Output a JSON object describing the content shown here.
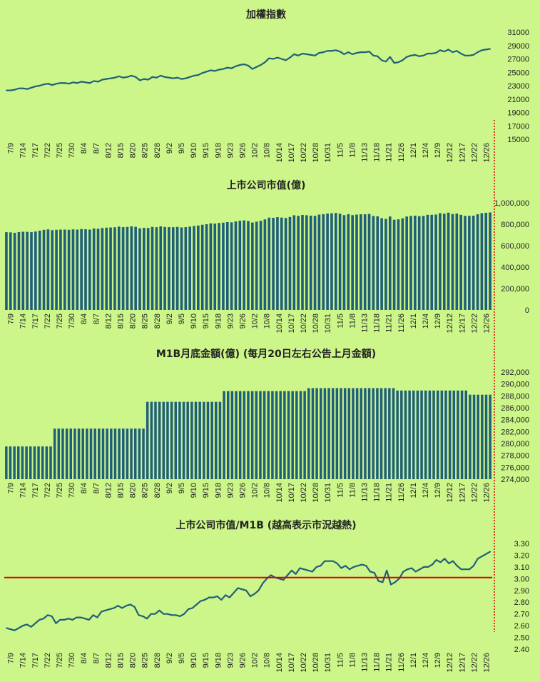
{
  "colors": {
    "background": "#ccf58a",
    "series": "#1f5f7a",
    "reference_line": "#e00000",
    "separator": "#e00000"
  },
  "x_labels": [
    "7/9",
    "7/14",
    "7/17",
    "7/22",
    "7/25",
    "7/30",
    "8/4",
    "8/7",
    "8/12",
    "8/15",
    "8/20",
    "8/25",
    "8/28",
    "9/2",
    "9/5",
    "9/10",
    "9/15",
    "9/18",
    "9/23",
    "9/26",
    "10/2",
    "10/8",
    "10/14",
    "10/17",
    "10/22",
    "10/28",
    "10/31",
    "11/5",
    "11/8",
    "11/13",
    "11/18",
    "11/21",
    "11/26",
    "12/1",
    "12/4",
    "12/9",
    "12/12",
    "12/17",
    "12/22",
    "12/26"
  ],
  "chart_data": [
    {
      "id": "taiex",
      "type": "line",
      "title": "加權指數",
      "ylim": [
        15000,
        31000
      ],
      "yticks": [
        "31000",
        "29000",
        "27000",
        "25000",
        "23000",
        "21000",
        "19000",
        "17000",
        "15000"
      ],
      "x_labels_ref": "x_labels",
      "values": [
        22300,
        22300,
        22400,
        22600,
        22600,
        22500,
        22700,
        22900,
        23000,
        23200,
        23300,
        23100,
        23300,
        23400,
        23400,
        23300,
        23500,
        23400,
        23600,
        23500,
        23400,
        23700,
        23600,
        23900,
        24000,
        24100,
        24200,
        24400,
        24200,
        24300,
        24500,
        24300,
        23800,
        24000,
        23900,
        24300,
        24200,
        24500,
        24300,
        24200,
        24100,
        24200,
        24000,
        24100,
        24300,
        24500,
        24600,
        24900,
        25100,
        25300,
        25200,
        25400,
        25500,
        25700,
        25600,
        25900,
        26100,
        26200,
        26000,
        25500,
        25800,
        26100,
        26500,
        27100,
        27000,
        27200,
        27000,
        26800,
        27200,
        27700,
        27500,
        27800,
        27700,
        27600,
        27500,
        27900,
        28000,
        28200,
        28200,
        28300,
        28100,
        27700,
        28000,
        27700,
        27900,
        28000,
        28000,
        28100,
        27500,
        27400,
        26800,
        26600,
        27300,
        26400,
        26500,
        26800,
        27300,
        27500,
        27600,
        27400,
        27500,
        27800,
        27800,
        27900,
        28300,
        28100,
        28400,
        28000,
        28200,
        27800,
        27500,
        27500,
        27600,
        28000,
        28300,
        28400,
        28500
      ]
    },
    {
      "id": "market_cap",
      "type": "bar",
      "title": "上市公司市值(億)",
      "ylim": [
        0,
        1000000
      ],
      "yticks": [
        "1,000,000",
        "800,000",
        "600,000",
        "400,000",
        "200,000",
        "0"
      ],
      "x_labels_ref": "x_labels",
      "values": [
        726000,
        724000,
        720000,
        727000,
        730000,
        729000,
        726000,
        732000,
        740000,
        748000,
        752000,
        745000,
        748000,
        750000,
        750000,
        748000,
        752000,
        750000,
        755000,
        753000,
        750000,
        760000,
        758000,
        765000,
        768000,
        770000,
        772000,
        778000,
        773000,
        775000,
        780000,
        776000,
        762000,
        766000,
        765000,
        775000,
        772000,
        780000,
        775000,
        773000,
        772000,
        775000,
        770000,
        773000,
        778000,
        784000,
        788000,
        795000,
        800000,
        808000,
        806000,
        812000,
        815000,
        820000,
        818000,
        826000,
        833000,
        836000,
        830000,
        816000,
        824000,
        832000,
        845000,
        862000,
        860000,
        866000,
        862000,
        858000,
        868000,
        884000,
        878000,
        887000,
        884000,
        880000,
        878000,
        890000,
        894000,
        900000,
        902000,
        905000,
        898000,
        885000,
        894000,
        885000,
        890000,
        893000,
        893000,
        896000,
        877000,
        874000,
        856000,
        850000,
        872000,
        842000,
        846000,
        855000,
        872000,
        877000,
        880000,
        875000,
        877000,
        888000,
        888000,
        890000,
        903000,
        898000,
        908000,
        895000,
        900000,
        888000,
        878000,
        878000,
        880000,
        893000,
        903000,
        907000,
        910000
      ]
    },
    {
      "id": "m1b",
      "type": "bar",
      "title": "M1B月底金額(億) (每月20日左右公告上月金額)",
      "ylim": [
        274000,
        292000
      ],
      "yticks": [
        "292,000",
        "290,000",
        "288,000",
        "286,000",
        "284,000",
        "282,000",
        "280,000",
        "278,000",
        "276,000",
        "274,000"
      ],
      "x_labels_ref": "x_labels",
      "values": [
        279500,
        279500,
        279500,
        279500,
        279500,
        279500,
        279500,
        279500,
        279500,
        279500,
        279500,
        279500,
        282500,
        282500,
        282500,
        282500,
        282500,
        282500,
        282500,
        282500,
        282500,
        282500,
        282500,
        282500,
        282500,
        282500,
        282500,
        282500,
        282500,
        282500,
        282500,
        282500,
        282500,
        282500,
        282500,
        287000,
        287000,
        287000,
        287000,
        287000,
        287000,
        287000,
        287000,
        287000,
        287000,
        287000,
        287000,
        287000,
        287000,
        287000,
        287000,
        287000,
        287000,
        287000,
        288800,
        288800,
        288800,
        288800,
        288800,
        288800,
        288800,
        288800,
        288800,
        288800,
        288800,
        288800,
        288800,
        288800,
        288800,
        288800,
        288800,
        288800,
        288800,
        288800,
        288800,
        289300,
        289300,
        289300,
        289300,
        289300,
        289300,
        289300,
        289300,
        289300,
        289300,
        289300,
        289300,
        289300,
        289300,
        289300,
        289300,
        289300,
        289300,
        289300,
        289300,
        289300,
        289300,
        288900,
        288900,
        288900,
        288900,
        288900,
        288900,
        288900,
        288900,
        288900,
        288900,
        288900,
        288900,
        288900,
        288900,
        288900,
        288900,
        288900,
        288900,
        288200,
        288200,
        288200,
        288200,
        288200,
        288200
      ]
    },
    {
      "id": "ratio",
      "type": "line",
      "title": "上市公司市值/M1B (越高表示市況越熱)",
      "ylim": [
        2.4,
        3.3
      ],
      "yticks": [
        "3.30",
        "3.20",
        "3.10",
        "3.00",
        "2.90",
        "2.80",
        "2.70",
        "2.60",
        "2.50",
        "2.40"
      ],
      "reference_value": 3.01,
      "x_labels_ref": "x_labels",
      "values": [
        2.58,
        2.57,
        2.56,
        2.58,
        2.6,
        2.61,
        2.59,
        2.62,
        2.65,
        2.66,
        2.69,
        2.68,
        2.62,
        2.65,
        2.65,
        2.66,
        2.65,
        2.67,
        2.67,
        2.66,
        2.65,
        2.69,
        2.67,
        2.72,
        2.73,
        2.74,
        2.75,
        2.77,
        2.75,
        2.77,
        2.78,
        2.76,
        2.69,
        2.68,
        2.66,
        2.7,
        2.7,
        2.73,
        2.7,
        2.7,
        2.69,
        2.69,
        2.68,
        2.7,
        2.74,
        2.75,
        2.78,
        2.81,
        2.82,
        2.84,
        2.84,
        2.85,
        2.82,
        2.86,
        2.84,
        2.88,
        2.92,
        2.91,
        2.9,
        2.85,
        2.87,
        2.9,
        2.96,
        3.0,
        3.03,
        3.01,
        3.0,
        2.99,
        3.03,
        3.07,
        3.04,
        3.09,
        3.08,
        3.07,
        3.06,
        3.1,
        3.11,
        3.15,
        3.15,
        3.15,
        3.13,
        3.09,
        3.11,
        3.08,
        3.1,
        3.11,
        3.12,
        3.11,
        3.06,
        3.05,
        2.98,
        2.97,
        3.07,
        2.95,
        2.97,
        3.0,
        3.06,
        3.08,
        3.09,
        3.06,
        3.08,
        3.1,
        3.1,
        3.12,
        3.16,
        3.14,
        3.17,
        3.13,
        3.15,
        3.11,
        3.08,
        3.08,
        3.08,
        3.11,
        3.17,
        3.19,
        3.21,
        3.23
      ]
    }
  ]
}
